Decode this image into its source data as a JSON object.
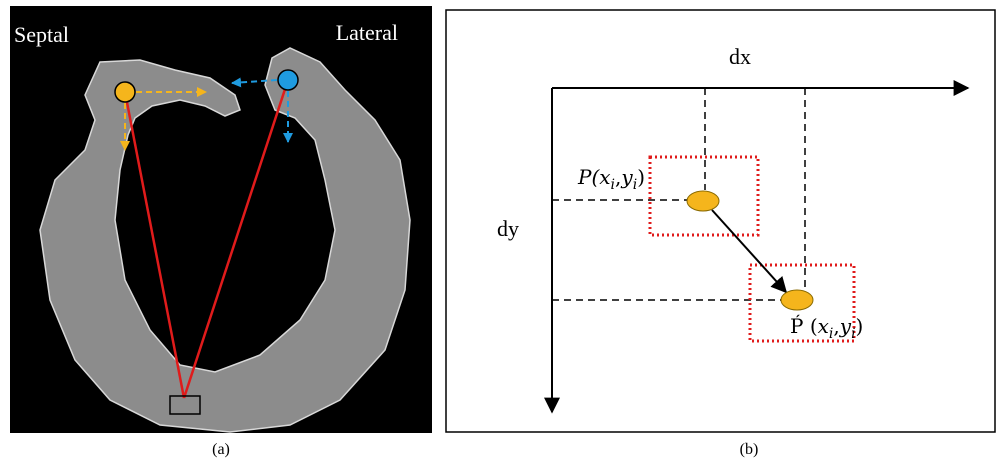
{
  "panel_a": {
    "left_label": "Septal",
    "right_label": "Lateral",
    "caption": "(a)"
  },
  "panel_b": {
    "x_axis": "dx",
    "y_axis": "dy",
    "start_label": {
      "prefix": "P(",
      "x": "x",
      "x_sub": "i",
      "sep": ",",
      "y": "y",
      "y_sub": "i",
      "suffix": ")"
    },
    "end_label": {
      "prefix": "Ṕ (",
      "x": "x",
      "x_sub": "i",
      "sep": ",",
      "y": "y",
      "y_sub": "i",
      "suffix": ")"
    },
    "caption": "(b)"
  }
}
